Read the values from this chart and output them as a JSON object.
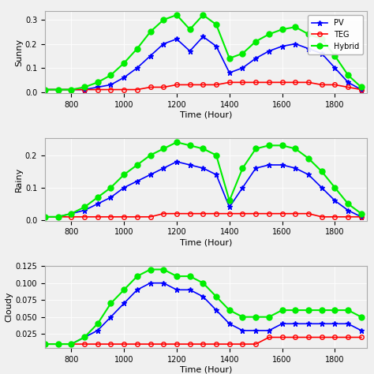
{
  "time": [
    700,
    750,
    800,
    850,
    900,
    950,
    1000,
    1050,
    1100,
    1150,
    1200,
    1250,
    1300,
    1350,
    1400,
    1450,
    1500,
    1550,
    1600,
    1650,
    1700,
    1750,
    1800,
    1850,
    1900
  ],
  "subplot1_title": "Sunny",
  "subplot1_pv": [
    0.01,
    0.01,
    0.01,
    0.01,
    0.02,
    0.03,
    0.06,
    0.1,
    0.15,
    0.2,
    0.22,
    0.17,
    0.23,
    0.19,
    0.08,
    0.1,
    0.14,
    0.17,
    0.19,
    0.2,
    0.18,
    0.16,
    0.1,
    0.04,
    0.01
  ],
  "subplot1_teg": [
    0.01,
    0.01,
    0.01,
    0.01,
    0.01,
    0.01,
    0.01,
    0.01,
    0.02,
    0.02,
    0.03,
    0.03,
    0.03,
    0.03,
    0.04,
    0.04,
    0.04,
    0.04,
    0.04,
    0.04,
    0.04,
    0.03,
    0.03,
    0.02,
    0.01
  ],
  "subplot1_hybrid": [
    0.01,
    0.01,
    0.01,
    0.02,
    0.04,
    0.07,
    0.12,
    0.18,
    0.25,
    0.3,
    0.32,
    0.26,
    0.32,
    0.28,
    0.14,
    0.16,
    0.21,
    0.24,
    0.26,
    0.27,
    0.24,
    0.22,
    0.15,
    0.07,
    0.02
  ],
  "subplot2_title": "Rainy",
  "subplot2_pv": [
    0.01,
    0.01,
    0.02,
    0.03,
    0.05,
    0.07,
    0.1,
    0.12,
    0.14,
    0.16,
    0.18,
    0.17,
    0.16,
    0.14,
    0.04,
    0.1,
    0.16,
    0.17,
    0.17,
    0.16,
    0.14,
    0.1,
    0.06,
    0.03,
    0.01
  ],
  "subplot2_teg": [
    0.01,
    0.01,
    0.01,
    0.01,
    0.01,
    0.01,
    0.01,
    0.01,
    0.01,
    0.02,
    0.02,
    0.02,
    0.02,
    0.02,
    0.02,
    0.02,
    0.02,
    0.02,
    0.02,
    0.02,
    0.02,
    0.01,
    0.01,
    0.01,
    0.01
  ],
  "subplot2_hybrid": [
    0.01,
    0.01,
    0.02,
    0.04,
    0.07,
    0.1,
    0.14,
    0.17,
    0.2,
    0.22,
    0.24,
    0.23,
    0.22,
    0.2,
    0.06,
    0.16,
    0.22,
    0.23,
    0.23,
    0.22,
    0.19,
    0.15,
    0.1,
    0.05,
    0.02
  ],
  "subplot3_title": "Cloudy",
  "subplot3_pv": [
    0.01,
    0.01,
    0.01,
    0.02,
    0.03,
    0.05,
    0.07,
    0.09,
    0.1,
    0.1,
    0.09,
    0.09,
    0.08,
    0.06,
    0.04,
    0.03,
    0.03,
    0.03,
    0.04,
    0.04,
    0.04,
    0.04,
    0.04,
    0.04,
    0.03
  ],
  "subplot3_teg": [
    0.01,
    0.01,
    0.01,
    0.01,
    0.01,
    0.01,
    0.01,
    0.01,
    0.01,
    0.01,
    0.01,
    0.01,
    0.01,
    0.01,
    0.01,
    0.01,
    0.01,
    0.02,
    0.02,
    0.02,
    0.02,
    0.02,
    0.02,
    0.02,
    0.02
  ],
  "subplot3_hybrid": [
    0.01,
    0.01,
    0.01,
    0.02,
    0.04,
    0.07,
    0.09,
    0.11,
    0.12,
    0.12,
    0.11,
    0.11,
    0.1,
    0.08,
    0.06,
    0.05,
    0.05,
    0.05,
    0.06,
    0.06,
    0.06,
    0.06,
    0.06,
    0.06,
    0.05
  ],
  "xlabel": "Time (Hour)",
  "legend_labels": [
    "PV",
    "TEG",
    "Hybrid"
  ],
  "pv_color": "#0000ff",
  "teg_color": "#ff0000",
  "hybrid_color": "#00ee00",
  "xlim": [
    700,
    1920
  ],
  "xticks": [
    800,
    1000,
    1200,
    1400,
    1600,
    1800
  ],
  "bg_color": "#f0f0f0"
}
